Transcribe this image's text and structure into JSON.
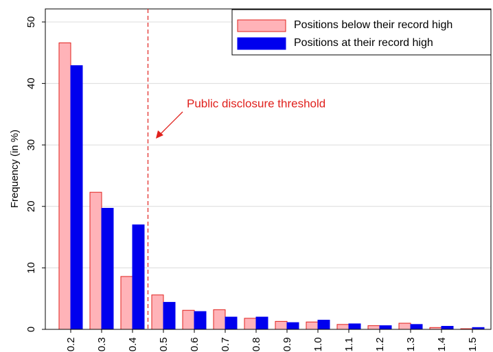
{
  "chart_data": {
    "type": "bar",
    "y_label": "Frequency (in %)",
    "annotation": "Public disclosure threshold",
    "categories": [
      "0.2",
      "0.3",
      "0.4",
      "0.5",
      "0.6",
      "0.7",
      "0.8",
      "0.9",
      "1.0",
      "1.1",
      "1.2",
      "1.3",
      "1.4",
      "1.5"
    ],
    "series": [
      {
        "name": "Positions below their record high",
        "color": "#ffb3b8",
        "edge": "#e0201c",
        "values": [
          46.6,
          22.3,
          8.6,
          5.6,
          3.1,
          3.2,
          1.8,
          1.3,
          1.2,
          0.8,
          0.6,
          1.0,
          0.3,
          0.1
        ]
      },
      {
        "name": "Positions at their record high",
        "color": "#0000ee",
        "edge": "#0000ee",
        "values": [
          42.9,
          19.7,
          17.0,
          4.4,
          2.9,
          2.0,
          2.0,
          1.1,
          1.5,
          0.9,
          0.6,
          0.8,
          0.5,
          0.3
        ]
      }
    ],
    "ylim": [
      0,
      50
    ],
    "yticks": [
      0,
      10,
      20,
      30,
      40,
      50
    ],
    "grid": true,
    "legend": "upper right"
  }
}
